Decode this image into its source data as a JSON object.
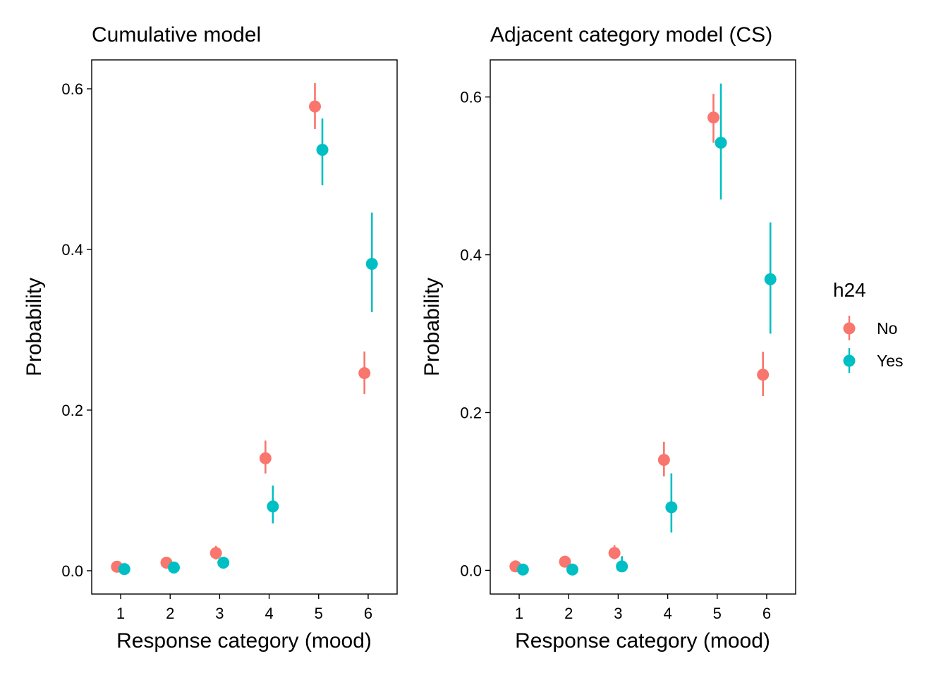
{
  "chart_data": [
    {
      "type": "scatter",
      "subtype": "pointrange",
      "title": "Cumulative model",
      "xlabel": "Response category (mood)",
      "ylabel": "Probability",
      "x_ticks": [
        "1",
        "2",
        "3",
        "4",
        "5",
        "6"
      ],
      "y_ticks": [
        "0.0",
        "0.2",
        "0.4",
        "0.6"
      ],
      "y_tick_values": [
        0.0,
        0.2,
        0.4,
        0.6
      ],
      "xlim": [
        0.415,
        6.585
      ],
      "ylim": [
        -0.029,
        0.636
      ],
      "grid": false,
      "categories": [
        1,
        2,
        3,
        4,
        5,
        6
      ],
      "series": [
        {
          "name": "No",
          "values": [
            0.005,
            0.01,
            0.022,
            0.14,
            0.578,
            0.246
          ],
          "lower": [
            0.002,
            0.006,
            0.014,
            0.121,
            0.55,
            0.22
          ],
          "upper": [
            0.008,
            0.014,
            0.031,
            0.162,
            0.607,
            0.273
          ]
        },
        {
          "name": "Yes",
          "values": [
            0.002,
            0.004,
            0.01,
            0.08,
            0.524,
            0.382
          ],
          "lower": [
            0.001,
            0.002,
            0.006,
            0.059,
            0.48,
            0.322
          ],
          "upper": [
            0.003,
            0.006,
            0.014,
            0.106,
            0.563,
            0.446
          ]
        }
      ]
    },
    {
      "type": "scatter",
      "subtype": "pointrange",
      "title": "Adjacent category model (CS)",
      "xlabel": "Response category (mood)",
      "ylabel": "Probability",
      "x_ticks": [
        "1",
        "2",
        "3",
        "4",
        "5",
        "6"
      ],
      "y_ticks": [
        "0.0",
        "0.2",
        "0.4",
        "0.6"
      ],
      "y_tick_values": [
        0.0,
        0.2,
        0.4,
        0.6
      ],
      "xlim": [
        0.415,
        6.585
      ],
      "ylim": [
        -0.03,
        0.647
      ],
      "grid": false,
      "categories": [
        1,
        2,
        3,
        4,
        5,
        6
      ],
      "series": [
        {
          "name": "No",
          "values": [
            0.005,
            0.011,
            0.022,
            0.14,
            0.574,
            0.248
          ],
          "lower": [
            0.002,
            0.007,
            0.014,
            0.119,
            0.542,
            0.221
          ],
          "upper": [
            0.008,
            0.015,
            0.032,
            0.163,
            0.604,
            0.277
          ]
        },
        {
          "name": "Yes",
          "values": [
            0.001,
            0.001,
            0.005,
            0.08,
            0.542,
            0.369
          ],
          "lower": [
            0.0,
            0.0,
            0.001,
            0.048,
            0.47,
            0.3
          ],
          "upper": [
            0.002,
            0.002,
            0.018,
            0.123,
            0.617,
            0.441
          ]
        }
      ]
    }
  ],
  "legend": {
    "title": "h24",
    "position": "right",
    "items": [
      {
        "label": "No",
        "color": "#F8766D"
      },
      {
        "label": "Yes",
        "color": "#00BFC4"
      }
    ]
  },
  "colors": {
    "No": "#F8766D",
    "Yes": "#00BFC4"
  }
}
